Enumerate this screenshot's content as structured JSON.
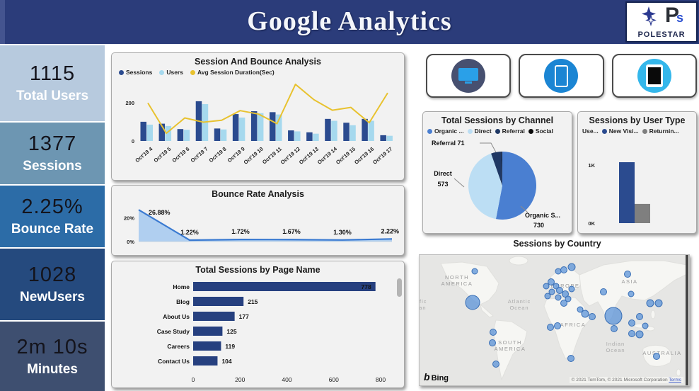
{
  "header": {
    "title": "Google Analytics",
    "logo": {
      "brand": "POLESTAR",
      "monogram_p": "P",
      "monogram_s": "s"
    }
  },
  "kpis": [
    {
      "value": "1115",
      "label": "Total Users",
      "bg": "#b7cade"
    },
    {
      "value": "1377",
      "label": "Sessions",
      "bg": "#6d96b2"
    },
    {
      "value": "2.25%",
      "label": "Bounce Rate",
      "bg": "#2c6ca7"
    },
    {
      "value": "1028",
      "label": "NewUsers",
      "bg": "#254a7e"
    },
    {
      "value": "2m 10s",
      "label": "Minutes",
      "bg": "#3e4f70"
    }
  ],
  "devices": [
    {
      "icon": "desktop-icon"
    },
    {
      "icon": "mobile-icon"
    },
    {
      "icon": "tablet-icon"
    }
  ],
  "chart_data": [
    {
      "id": "session-bounce",
      "type": "bar",
      "title": "Session And Bounce Analysis",
      "categories": [
        "Oct'19 4",
        "Oct'19 5",
        "Oct'19 6",
        "Oct'19 7",
        "Oct'19 8",
        "Oct'19 9",
        "Oct'19 10",
        "Oct'19 11",
        "Oct'19 12",
        "Oct'19 13",
        "Oct'19 14",
        "Oct'19 15",
        "Oct'19 16",
        "Oct'19 17"
      ],
      "series": [
        {
          "name": "Sessions",
          "kind": "bar",
          "color": "#2b4b8f",
          "values": [
            100,
            90,
            62,
            207,
            65,
            140,
            155,
            150,
            55,
            45,
            115,
            95,
            115,
            30
          ]
        },
        {
          "name": "Users",
          "kind": "bar",
          "color": "#a6d9ee",
          "values": [
            85,
            78,
            58,
            192,
            60,
            122,
            145,
            138,
            50,
            38,
            105,
            82,
            105,
            27
          ]
        },
        {
          "name": "Avg Session Duration(Sec)",
          "kind": "line",
          "color": "#e8c22f",
          "values": [
            198,
            40,
            120,
            98,
            108,
            158,
            140,
            90,
            295,
            215,
            160,
            175,
            95,
            250
          ]
        }
      ],
      "y_ticks": [
        "200",
        "0"
      ],
      "ylim": [
        0,
        310
      ],
      "legend_position": "top"
    },
    {
      "id": "bounce-rate",
      "type": "area",
      "title": "Bounce Rate Analysis",
      "categories": [
        1,
        2,
        3,
        4,
        5,
        6
      ],
      "values": [
        26.88,
        1.22,
        1.72,
        1.67,
        1.3,
        2.22
      ],
      "point_labels": [
        "26.88%",
        "1.22%",
        "1.72%",
        "1.67%",
        "1.30%",
        "2.22%"
      ],
      "y_ticks": [
        "20%",
        "0%"
      ],
      "ylim": [
        0,
        30
      ],
      "line_color": "#3a7ad1",
      "fill_color": "#a9cbf0"
    },
    {
      "id": "pages",
      "type": "bar",
      "orientation": "horizontal",
      "title": "Total Sessions by Page Name",
      "categories": [
        "Home",
        "Blog",
        "About Us",
        "Case Study",
        "Careers",
        "Contact Us"
      ],
      "values": [
        778,
        215,
        177,
        125,
        119,
        104
      ],
      "x_ticks": [
        "0",
        "200",
        "400",
        "600",
        "800"
      ],
      "xlim": [
        0,
        800
      ],
      "bar_color": "#26407f"
    },
    {
      "id": "channel",
      "type": "pie",
      "title": "Total Sessions by Channel",
      "legend": [
        "Organic ...",
        "Direct",
        "Referral",
        "Social"
      ],
      "slices": [
        {
          "name": "Organic Search",
          "value": 730,
          "color": "#4a7fd1",
          "callout_name": "Organic S...",
          "callout_value": "730"
        },
        {
          "name": "Direct",
          "value": 573,
          "color": "#bcdef4",
          "callout_name": "Direct",
          "callout_value": "573"
        },
        {
          "name": "Referral",
          "value": 71,
          "color": "#1f3864",
          "callout_label": "Referral 71"
        },
        {
          "name": "Social",
          "value": 3,
          "color": "#0a0a0a"
        }
      ]
    },
    {
      "id": "user-type",
      "type": "bar",
      "title": "Sessions by User Type",
      "legend_title": "Use...",
      "series": [
        {
          "name": "New Visi...",
          "color": "#2b4b8f",
          "value": 1047
        },
        {
          "name": "Returnin...",
          "color": "#7f7f7f",
          "value": 330
        }
      ],
      "y_ticks": [
        "1K",
        "0K"
      ],
      "ylim": [
        0,
        1400
      ]
    },
    {
      "id": "country-map",
      "type": "map",
      "title": "Sessions by Country",
      "provider": "Bing",
      "attribution": "© 2021 TomTom, © 2021 Microsoft Corporation",
      "terms_label": "Terms",
      "region_labels": [
        {
          "lines": [
            "NORTH",
            "AMERICA"
          ],
          "x": 53,
          "y": 34,
          "cls": "mlbl"
        },
        {
          "lines": [
            "EUROPE"
          ],
          "x": 206,
          "y": 46,
          "cls": "mlbl"
        },
        {
          "lines": [
            "ASIA"
          ],
          "x": 297,
          "y": 40,
          "cls": "mlbl"
        },
        {
          "lines": [
            "Pacific",
            "Ocean"
          ],
          "x": -4,
          "y": 68,
          "cls": "molbl"
        },
        {
          "lines": [
            "Atlantic",
            "Ocean"
          ],
          "x": 141,
          "y": 68,
          "cls": "molbl"
        },
        {
          "lines": [
            "AFRICA"
          ],
          "x": 217,
          "y": 101,
          "cls": "mlbl"
        },
        {
          "lines": [
            "SOUTH",
            "AMERICA"
          ],
          "x": 128,
          "y": 126,
          "cls": "mlbl"
        },
        {
          "lines": [
            "Indian",
            "Ocean"
          ],
          "x": 277,
          "y": 128,
          "cls": "molbl"
        },
        {
          "lines": [
            "AUSTRALIA"
          ],
          "x": 343,
          "y": 141,
          "cls": "mlbl"
        }
      ],
      "bubbles": [
        {
          "x": 78,
          "y": 23,
          "r": 4
        },
        {
          "x": 75,
          "y": 67,
          "r": 10
        },
        {
          "x": 196,
          "y": 23,
          "r": 4
        },
        {
          "x": 204,
          "y": 21,
          "r": 4.5
        },
        {
          "x": 215,
          "y": 17,
          "r": 5
        },
        {
          "x": 294,
          "y": 27,
          "r": 4.5
        },
        {
          "x": 179,
          "y": 44,
          "r": 4
        },
        {
          "x": 186,
          "y": 38,
          "r": 4.5
        },
        {
          "x": 193,
          "y": 44,
          "r": 4
        },
        {
          "x": 198,
          "y": 50,
          "r": 4.5
        },
        {
          "x": 187,
          "y": 52,
          "r": 4
        },
        {
          "x": 181,
          "y": 58,
          "r": 4
        },
        {
          "x": 196,
          "y": 60,
          "r": 4
        },
        {
          "x": 206,
          "y": 55,
          "r": 4.5
        },
        {
          "x": 215,
          "y": 48,
          "r": 4
        },
        {
          "x": 204,
          "y": 68,
          "r": 4.5
        },
        {
          "x": 210,
          "y": 62,
          "r": 4
        },
        {
          "x": 260,
          "y": 52,
          "r": 4.5
        },
        {
          "x": 299,
          "y": 55,
          "r": 4
        },
        {
          "x": 326,
          "y": 68,
          "r": 5
        },
        {
          "x": 338,
          "y": 68,
          "r": 5
        },
        {
          "x": 185,
          "y": 102,
          "r": 4.5
        },
        {
          "x": 195,
          "y": 100,
          "r": 4.5
        },
        {
          "x": 234,
          "y": 83,
          "r": 5
        },
        {
          "x": 244,
          "y": 87,
          "r": 4.5
        },
        {
          "x": 227,
          "y": 77,
          "r": 4
        },
        {
          "x": 274,
          "y": 86,
          "r": 12
        },
        {
          "x": 275,
          "y": 104,
          "r": 4.5
        },
        {
          "x": 300,
          "y": 96,
          "r": 4.5
        },
        {
          "x": 300,
          "y": 111,
          "r": 4.5
        },
        {
          "x": 311,
          "y": 112,
          "r": 5
        },
        {
          "x": 311,
          "y": 87,
          "r": 4.5
        },
        {
          "x": 319,
          "y": 100,
          "r": 4
        },
        {
          "x": 104,
          "y": 109,
          "r": 4.5
        },
        {
          "x": 103,
          "y": 124,
          "r": 4.5
        },
        {
          "x": 108,
          "y": 154,
          "r": 4.5
        },
        {
          "x": 214,
          "y": 146,
          "r": 4.5
        },
        {
          "x": 335,
          "y": 143,
          "r": 4.5
        }
      ]
    }
  ]
}
